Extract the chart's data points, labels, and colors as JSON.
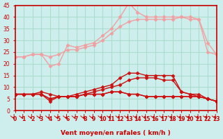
{
  "xlabel": "Vent moyen/en rafales ( km/h )",
  "xlim": [
    0,
    23
  ],
  "ylim": [
    0,
    45
  ],
  "yticks": [
    0,
    5,
    10,
    15,
    20,
    25,
    30,
    35,
    40,
    45
  ],
  "xticks": [
    0,
    1,
    2,
    3,
    4,
    5,
    6,
    7,
    8,
    9,
    10,
    11,
    12,
    13,
    14,
    15,
    16,
    17,
    18,
    19,
    20,
    21,
    22,
    23
  ],
  "bg_color": "#cdeeed",
  "grid_color": "#aaddcc",
  "line_color_light": "#f0a0a0",
  "line_color_medium": "#e05050",
  "line_color_dark": "#cc0000",
  "lines": [
    {
      "x": [
        0,
        1,
        2,
        3,
        4,
        5,
        6,
        7,
        8,
        9,
        10,
        11,
        12,
        13,
        14,
        15,
        16,
        17,
        18,
        19,
        20,
        21,
        22,
        23
      ],
      "y": [
        23,
        23,
        24,
        24,
        19,
        20,
        28,
        27,
        28,
        29,
        32,
        35,
        40,
        46,
        42,
        40,
        40,
        40,
        40,
        40,
        40,
        39,
        25,
        24
      ],
      "color": "#f0a0a0",
      "marker": "D",
      "markersize": 2.5,
      "linewidth": 1.0
    },
    {
      "x": [
        0,
        1,
        2,
        3,
        4,
        5,
        6,
        7,
        8,
        9,
        10,
        11,
        12,
        13,
        14,
        15,
        16,
        17,
        18,
        19,
        20,
        21,
        22,
        23
      ],
      "y": [
        23,
        23,
        24,
        24,
        23,
        24,
        26,
        26,
        27,
        28,
        30,
        33,
        36,
        38,
        39,
        39,
        39,
        39,
        39,
        40,
        39,
        39,
        29,
        24
      ],
      "color": "#f0a0a0",
      "marker": "D",
      "markersize": 2.5,
      "linewidth": 1.0
    },
    {
      "x": [
        0,
        1,
        2,
        3,
        4,
        5,
        6,
        7,
        8,
        9,
        10,
        11,
        12,
        13,
        14,
        15,
        16,
        17,
        18,
        19,
        20,
        21,
        22,
        23
      ],
      "y": [
        7,
        7,
        7,
        7,
        5,
        6,
        6,
        7,
        8,
        9,
        10,
        11,
        14,
        16,
        16,
        15,
        15,
        15,
        15,
        8,
        7,
        7,
        5,
        4
      ],
      "color": "#cc1111",
      "marker": "D",
      "markersize": 2.5,
      "linewidth": 1.0
    },
    {
      "x": [
        0,
        1,
        2,
        3,
        4,
        5,
        6,
        7,
        8,
        9,
        10,
        11,
        12,
        13,
        14,
        15,
        16,
        17,
        18,
        19,
        20,
        21,
        22,
        23
      ],
      "y": [
        7,
        7,
        7,
        7,
        4,
        6,
        6,
        6,
        7,
        8,
        9,
        10,
        11,
        13,
        14,
        14,
        14,
        13,
        13,
        8,
        7,
        6,
        5,
        4
      ],
      "color": "#cc1111",
      "marker": "D",
      "markersize": 2.5,
      "linewidth": 1.0
    },
    {
      "x": [
        0,
        1,
        2,
        3,
        4,
        5,
        6,
        7,
        8,
        9,
        10,
        11,
        12,
        13,
        14,
        15,
        16,
        17,
        18,
        19,
        20,
        21,
        22,
        23
      ],
      "y": [
        7,
        7,
        7,
        8,
        7,
        6,
        6,
        6,
        7,
        7,
        7,
        8,
        8,
        7,
        7,
        6,
        6,
        6,
        6,
        6,
        6,
        6,
        5,
        4
      ],
      "color": "#cc1111",
      "marker": "D",
      "markersize": 2.5,
      "linewidth": 1.0
    },
    {
      "x": [
        0,
        1,
        2,
        3,
        4,
        5,
        6,
        7,
        8,
        9,
        10,
        11,
        12,
        13,
        14,
        15,
        16,
        17,
        18,
        19,
        20,
        21,
        22,
        23
      ],
      "y": [
        7,
        7,
        7,
        7,
        5,
        6,
        6,
        6,
        7,
        7,
        7,
        8,
        8,
        7,
        7,
        6,
        6,
        6,
        6,
        6,
        6,
        6,
        5,
        4
      ],
      "color": "#cc1111",
      "marker": "D",
      "markersize": 2.5,
      "linewidth": 1.0
    }
  ],
  "arrow_color": "#cc0000",
  "tick_color": "#cc0000",
  "label_color": "#cc0000",
  "axis_color": "#cc0000"
}
